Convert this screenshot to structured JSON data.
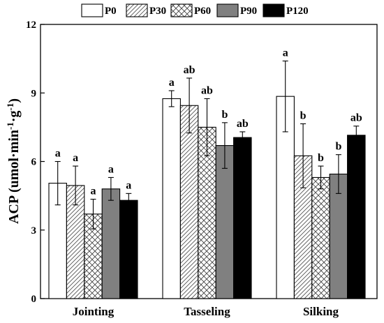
{
  "chart_data": {
    "type": "bar",
    "ylabel": "ACP (umol·min",
    "ylabel_sup1": "-1",
    "ylabel_mid": "·g",
    "ylabel_sup2": "-1",
    "ylabel_end": ")",
    "ylim": [
      0,
      12
    ],
    "yticks": [
      "0",
      "3",
      "6",
      "9",
      "12"
    ],
    "categories": [
      "Jointing",
      "Tasseling",
      "Silking"
    ],
    "legend_position": "top",
    "grid": false,
    "series": [
      {
        "name": "P0",
        "pattern": "white",
        "values": [
          5.05,
          8.75,
          8.85
        ],
        "errors": [
          0.95,
          0.35,
          1.55
        ],
        "labels": [
          "a",
          "a",
          "a"
        ]
      },
      {
        "name": "P30",
        "pattern": "diagonal",
        "values": [
          4.95,
          8.45,
          6.25
        ],
        "errors": [
          0.85,
          1.2,
          1.4
        ],
        "labels": [
          "a",
          "ab",
          "b"
        ]
      },
      {
        "name": "P60",
        "pattern": "crosshatch",
        "values": [
          3.7,
          7.5,
          5.3
        ],
        "errors": [
          0.65,
          1.25,
          0.5
        ],
        "labels": [
          "a",
          "ab",
          "b"
        ]
      },
      {
        "name": "P90",
        "pattern": "gray",
        "values": [
          4.8,
          6.7,
          5.45
        ],
        "errors": [
          0.5,
          1.0,
          0.85
        ],
        "labels": [
          "a",
          "b",
          "b"
        ]
      },
      {
        "name": "P120",
        "pattern": "black",
        "values": [
          4.3,
          7.05,
          7.15
        ],
        "errors": [
          0.3,
          0.25,
          0.4
        ],
        "labels": [
          "a",
          "ab",
          "ab"
        ]
      }
    ],
    "colors": {
      "gray": "#808080",
      "black": "#000000",
      "white": "#ffffff"
    }
  }
}
